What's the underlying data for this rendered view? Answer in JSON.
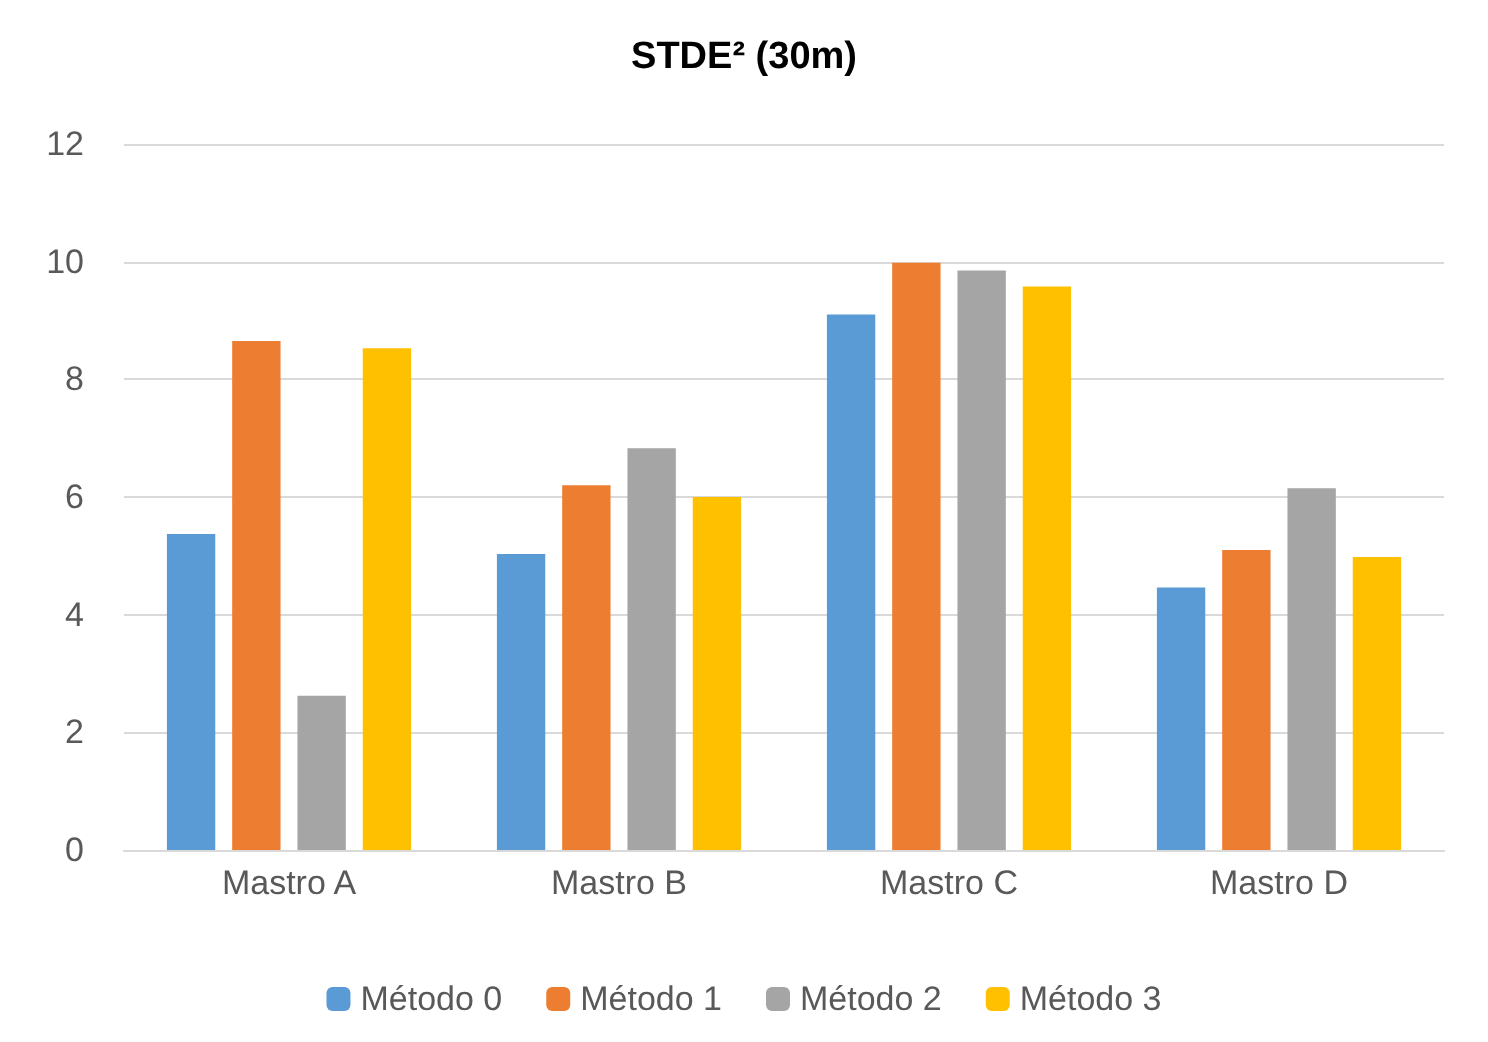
{
  "chart_data": {
    "type": "bar",
    "title": "STDE² (30m)",
    "categories": [
      "Mastro A",
      "Mastro B",
      "Mastro C",
      "Mastro D"
    ],
    "series": [
      {
        "name": "Método 0",
        "color": "#5b9bd5",
        "values": [
          5.37,
          5.03,
          9.1,
          4.46
        ]
      },
      {
        "name": "Método 1",
        "color": "#ed7d31",
        "values": [
          8.65,
          6.2,
          9.98,
          5.1
        ]
      },
      {
        "name": "Método 2",
        "color": "#a5a5a5",
        "values": [
          2.62,
          6.83,
          9.85,
          6.15
        ]
      },
      {
        "name": "Método 3",
        "color": "#ffc000",
        "values": [
          8.53,
          6.0,
          9.58,
          4.98
        ]
      }
    ],
    "ylim": [
      0,
      12
    ],
    "yticks": [
      0,
      2,
      4,
      6,
      8,
      10,
      12
    ],
    "grid": "y",
    "legend": "bottom"
  }
}
